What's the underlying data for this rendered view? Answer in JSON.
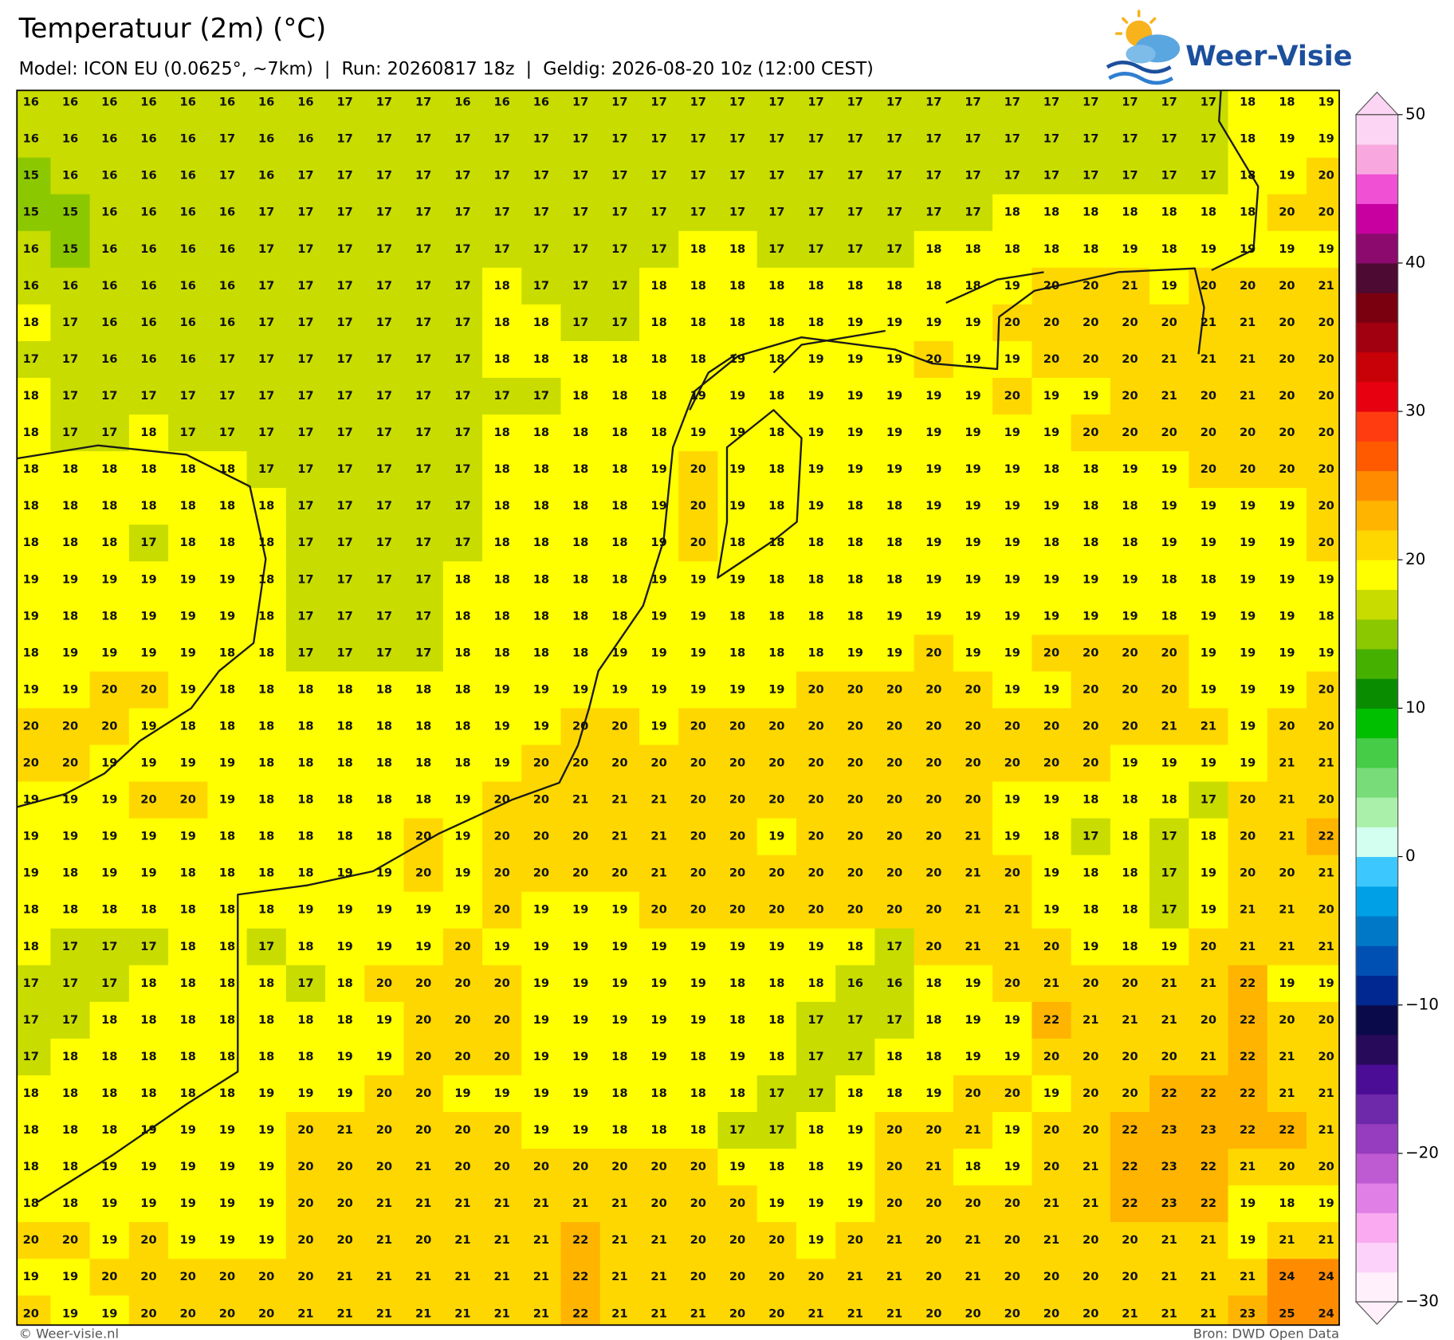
{
  "header": {
    "title": "Temperatuur (2m) (°C)",
    "subtitle": "Model: ICON EU (0.0625°, ~7km)  |  Run: 20260817 18z  |  Geldig: 2026-08-20 10z (12:00 CEST)",
    "logo": "Weer-Visie"
  },
  "map": {
    "values": [
      [
        16,
        16,
        16,
        16,
        16,
        16,
        16,
        16,
        17,
        17,
        17,
        16,
        16,
        16,
        17,
        17,
        17,
        17,
        17,
        17,
        17,
        17,
        17,
        17,
        17,
        17,
        17,
        17,
        17,
        17,
        17,
        18,
        18,
        19
      ],
      [
        16,
        16,
        16,
        16,
        16,
        17,
        16,
        16,
        17,
        17,
        17,
        17,
        17,
        17,
        17,
        17,
        17,
        17,
        17,
        17,
        17,
        17,
        17,
        17,
        17,
        17,
        17,
        17,
        17,
        17,
        17,
        18,
        19,
        19
      ],
      [
        15,
        16,
        16,
        16,
        16,
        17,
        16,
        17,
        17,
        17,
        17,
        17,
        17,
        17,
        17,
        17,
        17,
        17,
        17,
        17,
        17,
        17,
        17,
        17,
        17,
        17,
        17,
        17,
        17,
        17,
        17,
        18,
        19,
        20
      ],
      [
        15,
        15,
        16,
        16,
        16,
        16,
        17,
        17,
        17,
        17,
        17,
        17,
        17,
        17,
        17,
        17,
        17,
        17,
        17,
        17,
        17,
        17,
        17,
        17,
        17,
        18,
        18,
        18,
        18,
        18,
        18,
        18,
        20,
        20
      ],
      [
        16,
        15,
        16,
        16,
        16,
        16,
        17,
        17,
        17,
        17,
        17,
        17,
        17,
        17,
        17,
        17,
        17,
        18,
        18,
        17,
        17,
        17,
        17,
        18,
        18,
        18,
        18,
        18,
        19,
        18,
        19,
        19,
        19,
        19
      ],
      [
        16,
        16,
        16,
        16,
        16,
        16,
        17,
        17,
        17,
        17,
        17,
        17,
        18,
        17,
        17,
        17,
        18,
        18,
        18,
        18,
        18,
        18,
        18,
        18,
        18,
        19,
        20,
        20,
        21,
        19,
        20,
        20,
        20,
        21
      ],
      [
        18,
        17,
        16,
        16,
        16,
        16,
        17,
        17,
        17,
        17,
        17,
        17,
        18,
        18,
        17,
        17,
        18,
        18,
        18,
        18,
        18,
        19,
        19,
        19,
        19,
        20,
        20,
        20,
        20,
        20,
        21,
        21,
        20,
        20
      ],
      [
        17,
        17,
        16,
        16,
        16,
        17,
        17,
        17,
        17,
        17,
        17,
        17,
        18,
        18,
        18,
        18,
        18,
        18,
        19,
        18,
        19,
        19,
        19,
        20,
        19,
        19,
        20,
        20,
        20,
        21,
        21,
        21,
        20,
        20
      ],
      [
        18,
        17,
        17,
        17,
        17,
        17,
        17,
        17,
        17,
        17,
        17,
        17,
        17,
        17,
        18,
        18,
        18,
        19,
        19,
        18,
        19,
        19,
        19,
        19,
        19,
        20,
        19,
        19,
        20,
        21,
        20,
        21,
        20,
        20
      ],
      [
        18,
        17,
        17,
        18,
        17,
        17,
        17,
        17,
        17,
        17,
        17,
        17,
        18,
        18,
        18,
        18,
        18,
        19,
        19,
        18,
        19,
        19,
        19,
        19,
        19,
        19,
        19,
        20,
        20,
        20,
        20,
        20,
        20,
        20
      ],
      [
        18,
        18,
        18,
        18,
        18,
        18,
        17,
        17,
        17,
        17,
        17,
        17,
        18,
        18,
        18,
        18,
        19,
        20,
        19,
        18,
        19,
        19,
        19,
        19,
        19,
        19,
        18,
        18,
        19,
        19,
        20,
        20,
        20,
        20
      ],
      [
        18,
        18,
        18,
        18,
        18,
        18,
        18,
        17,
        17,
        17,
        17,
        17,
        18,
        18,
        18,
        18,
        19,
        20,
        19,
        18,
        19,
        18,
        18,
        19,
        19,
        19,
        19,
        18,
        18,
        19,
        19,
        19,
        19,
        20
      ],
      [
        18,
        18,
        18,
        17,
        18,
        18,
        18,
        17,
        17,
        17,
        17,
        17,
        18,
        18,
        18,
        18,
        19,
        20,
        18,
        18,
        18,
        18,
        18,
        19,
        19,
        19,
        18,
        18,
        18,
        19,
        19,
        19,
        19,
        20
      ],
      [
        19,
        19,
        19,
        19,
        19,
        19,
        18,
        17,
        17,
        17,
        17,
        18,
        18,
        18,
        18,
        18,
        19,
        19,
        19,
        18,
        18,
        18,
        18,
        19,
        19,
        19,
        19,
        19,
        19,
        18,
        18,
        19,
        19,
        19
      ],
      [
        19,
        18,
        18,
        19,
        19,
        19,
        18,
        17,
        17,
        17,
        17,
        18,
        18,
        18,
        18,
        18,
        19,
        19,
        18,
        18,
        18,
        18,
        19,
        19,
        19,
        19,
        19,
        19,
        19,
        18,
        19,
        19,
        19,
        18
      ],
      [
        18,
        19,
        19,
        19,
        19,
        18,
        18,
        17,
        17,
        17,
        17,
        18,
        18,
        18,
        18,
        19,
        19,
        19,
        18,
        18,
        18,
        19,
        19,
        20,
        19,
        19,
        20,
        20,
        20,
        20,
        19,
        19,
        19,
        19
      ],
      [
        19,
        19,
        20,
        20,
        19,
        18,
        18,
        18,
        18,
        18,
        18,
        18,
        19,
        19,
        19,
        19,
        19,
        19,
        19,
        19,
        20,
        20,
        20,
        20,
        20,
        19,
        19,
        20,
        20,
        20,
        19,
        19,
        19,
        20
      ],
      [
        20,
        20,
        20,
        19,
        18,
        18,
        18,
        18,
        18,
        18,
        18,
        18,
        19,
        19,
        20,
        20,
        19,
        20,
        20,
        20,
        20,
        20,
        20,
        20,
        20,
        20,
        20,
        20,
        20,
        21,
        21,
        19,
        20,
        20
      ],
      [
        20,
        20,
        19,
        19,
        19,
        19,
        18,
        18,
        18,
        18,
        18,
        18,
        19,
        20,
        20,
        20,
        20,
        20,
        20,
        20,
        20,
        20,
        20,
        20,
        20,
        20,
        20,
        20,
        19,
        19,
        19,
        19,
        21,
        21
      ],
      [
        19,
        19,
        19,
        20,
        20,
        19,
        18,
        18,
        18,
        18,
        18,
        19,
        20,
        20,
        21,
        21,
        21,
        20,
        20,
        20,
        20,
        20,
        20,
        20,
        20,
        19,
        19,
        18,
        18,
        18,
        17,
        20,
        21,
        20
      ],
      [
        19,
        19,
        19,
        19,
        19,
        18,
        18,
        18,
        18,
        18,
        20,
        19,
        20,
        20,
        20,
        21,
        21,
        20,
        20,
        19,
        20,
        20,
        20,
        20,
        21,
        19,
        18,
        17,
        18,
        17,
        18,
        20,
        21,
        22
      ],
      [
        19,
        18,
        19,
        19,
        18,
        18,
        18,
        18,
        19,
        19,
        20,
        19,
        20,
        20,
        20,
        20,
        21,
        20,
        20,
        20,
        20,
        20,
        20,
        20,
        21,
        20,
        19,
        18,
        18,
        17,
        19,
        20,
        20,
        21
      ],
      [
        18,
        18,
        18,
        18,
        18,
        18,
        18,
        19,
        19,
        19,
        19,
        19,
        20,
        19,
        19,
        19,
        20,
        20,
        20,
        20,
        20,
        20,
        20,
        20,
        21,
        21,
        19,
        18,
        18,
        17,
        19,
        21,
        21,
        20
      ],
      [
        18,
        17,
        17,
        17,
        18,
        18,
        17,
        18,
        19,
        19,
        19,
        20,
        19,
        19,
        19,
        19,
        19,
        19,
        19,
        19,
        19,
        18,
        17,
        20,
        21,
        21,
        20,
        19,
        18,
        19,
        20,
        21,
        21,
        21
      ],
      [
        17,
        17,
        17,
        18,
        18,
        18,
        18,
        17,
        18,
        20,
        20,
        20,
        20,
        19,
        19,
        19,
        19,
        19,
        18,
        18,
        18,
        16,
        16,
        18,
        19,
        20,
        21,
        20,
        20,
        21,
        21,
        22,
        19,
        19
      ],
      [
        17,
        17,
        18,
        18,
        18,
        18,
        18,
        18,
        18,
        19,
        20,
        20,
        20,
        19,
        19,
        19,
        19,
        19,
        18,
        18,
        17,
        17,
        17,
        18,
        19,
        19,
        22,
        21,
        21,
        21,
        20,
        22,
        20,
        20
      ],
      [
        17,
        18,
        18,
        18,
        18,
        18,
        18,
        18,
        19,
        19,
        20,
        20,
        20,
        19,
        19,
        18,
        19,
        18,
        19,
        18,
        17,
        17,
        18,
        18,
        19,
        19,
        20,
        20,
        20,
        20,
        21,
        22,
        21,
        20
      ],
      [
        18,
        18,
        18,
        18,
        18,
        18,
        19,
        19,
        19,
        20,
        20,
        19,
        19,
        19,
        19,
        18,
        18,
        18,
        18,
        17,
        17,
        18,
        18,
        19,
        20,
        20,
        19,
        20,
        20,
        22,
        22,
        22,
        21,
        21
      ],
      [
        18,
        18,
        18,
        19,
        19,
        19,
        19,
        20,
        21,
        20,
        20,
        20,
        20,
        19,
        19,
        18,
        18,
        18,
        17,
        17,
        18,
        19,
        20,
        20,
        21,
        19,
        20,
        20,
        22,
        23,
        23,
        22,
        22,
        21
      ],
      [
        18,
        18,
        19,
        19,
        19,
        19,
        19,
        20,
        20,
        20,
        21,
        20,
        20,
        20,
        20,
        20,
        20,
        20,
        19,
        18,
        18,
        19,
        20,
        21,
        18,
        19,
        20,
        21,
        22,
        23,
        22,
        21,
        20,
        20
      ],
      [
        18,
        18,
        19,
        19,
        19,
        19,
        19,
        20,
        20,
        21,
        21,
        21,
        21,
        21,
        21,
        21,
        20,
        20,
        20,
        19,
        19,
        19,
        20,
        20,
        20,
        20,
        21,
        21,
        22,
        23,
        22,
        19,
        18,
        19
      ],
      [
        20,
        20,
        19,
        20,
        19,
        19,
        19,
        20,
        20,
        21,
        20,
        21,
        21,
        21,
        22,
        21,
        21,
        20,
        20,
        20,
        19,
        20,
        21,
        20,
        21,
        20,
        21,
        20,
        20,
        21,
        21,
        19,
        21,
        21
      ],
      [
        19,
        19,
        20,
        20,
        20,
        20,
        20,
        20,
        21,
        21,
        21,
        21,
        21,
        21,
        22,
        21,
        21,
        20,
        20,
        20,
        20,
        21,
        21,
        20,
        21,
        20,
        20,
        20,
        20,
        21,
        21,
        21,
        24,
        24
      ],
      [
        20,
        19,
        19,
        20,
        20,
        20,
        20,
        21,
        21,
        21,
        21,
        21,
        21,
        21,
        22,
        21,
        21,
        21,
        20,
        20,
        21,
        21,
        21,
        20,
        20,
        20,
        20,
        20,
        21,
        21,
        21,
        23,
        25,
        24
      ]
    ]
  },
  "colorbar": {
    "lim": [
      -30,
      50
    ],
    "colors": [
      "#fff0fc",
      "#fcd2fa",
      "#faaaf0",
      "#e080e6",
      "#be5ad2",
      "#963cbe",
      "#6e28aa",
      "#4b0c96",
      "#280a5a",
      "#0a0a4a",
      "#002890",
      "#0050b4",
      "#0078c8",
      "#00a0e6",
      "#3cc8ff",
      "#d2fff0",
      "#aaf0aa",
      "#78dc78",
      "#46cc46",
      "#00be00",
      "#0a8c00",
      "#46b000",
      "#8cc800",
      "#c8dc00",
      "#ffff00",
      "#ffd700",
      "#ffb400",
      "#ff8c00",
      "#ff5a00",
      "#ff3c10",
      "#e60010",
      "#c80008",
      "#a00010",
      "#7a0010",
      "#4d0a32",
      "#8c0a6e",
      "#c800a0",
      "#f050d4",
      "#f8a8de",
      "#fcd5f4"
    ],
    "ticks": [
      {
        "value": -30,
        "label": "−30"
      },
      {
        "value": -20,
        "label": "−20"
      },
      {
        "value": -10,
        "label": "−10"
      },
      0,
      10,
      20,
      30,
      40,
      50
    ]
  },
  "footer": {
    "credit": "© Weer-visie.nl",
    "source": "Bron: DWD Open Data"
  }
}
